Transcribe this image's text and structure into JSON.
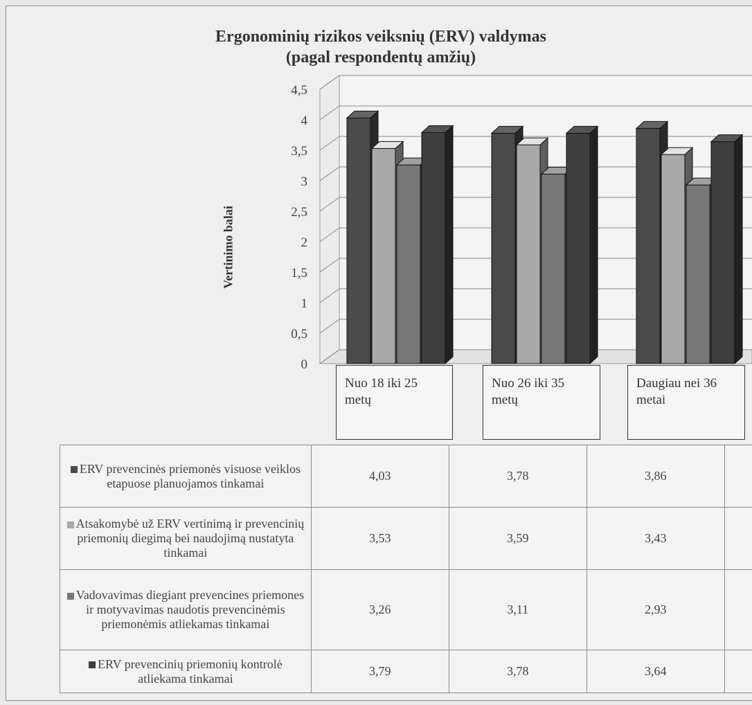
{
  "chart_data": {
    "type": "bar",
    "title": "Ergonominių rizikos veiksnių (ERV) valdymas\n(pagal respondentų amžių)",
    "ylabel": "Vertinimo balai",
    "xlabel": "",
    "ylim": [
      0,
      4.5
    ],
    "yticks": [
      "0",
      "0,5",
      "1",
      "1,5",
      "2",
      "2,5",
      "3",
      "3,5",
      "4",
      "4,5"
    ],
    "categories": [
      "Nuo 18 iki 25 metų",
      "Nuo 26 iki 35 metų",
      "Daugiau nei 36 metai"
    ],
    "series": [
      {
        "name": "ERV prevencinės priemonės visuose veiklos etapuose planuojamos tinkamai",
        "values": [
          4.03,
          3.78,
          3.86
        ],
        "labels": [
          "4,03",
          "3,78",
          "3,86"
        ],
        "color": "#4a4a4a"
      },
      {
        "name": "Atsakomybė už ERV vertinimą ir prevencinių priemonių diegimą bei naudojimą nustatyta tinkamai",
        "values": [
          3.53,
          3.59,
          3.43
        ],
        "labels": [
          "3,53",
          "3,59",
          "3,43"
        ],
        "color": "#a9a9a9"
      },
      {
        "name": "Vadovavimas diegiant prevencines priemones ir motyvavimas naudotis prevencinėmis priemonėmis atliekamas tinkamai",
        "values": [
          3.26,
          3.11,
          2.93
        ],
        "labels": [
          "3,26",
          "3,11",
          "2,93"
        ],
        "color": "#777777"
      },
      {
        "name": "ERV prevencinių priemonių kontrolė atliekama tinkamai",
        "values": [
          3.79,
          3.78,
          3.64
        ],
        "labels": [
          "3,79",
          "3,78",
          "3,64"
        ],
        "color": "#3e3e3e"
      }
    ]
  }
}
